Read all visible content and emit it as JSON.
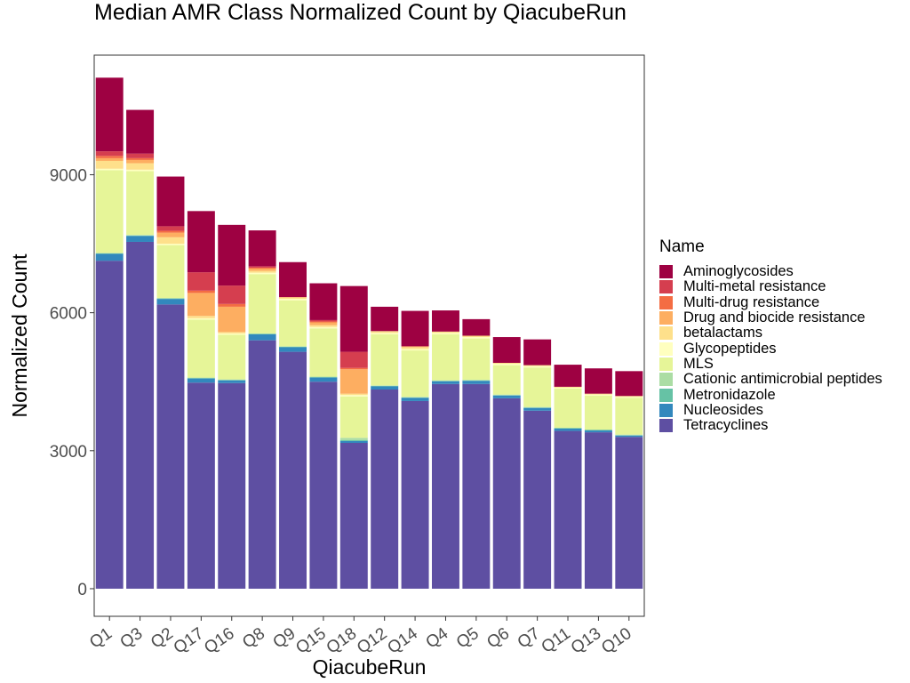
{
  "chart_data": {
    "type": "bar",
    "stacked": true,
    "title": "Median AMR Class Normalized Count by QiacubeRun",
    "xlabel": "QiacubeRun",
    "ylabel": "Normalized Count",
    "ylim": [
      -600,
      11600
    ],
    "yticks": [
      0,
      3000,
      6000,
      9000
    ],
    "ytick_labels": [
      "0",
      "3000",
      "6000",
      "9000"
    ],
    "grid": false,
    "legend_title": "Name",
    "legend_position": "right",
    "categories": [
      "Q1",
      "Q3",
      "Q2",
      "Q17",
      "Q16",
      "Q8",
      "Q9",
      "Q15",
      "Q18",
      "Q12",
      "Q14",
      "Q4",
      "Q5",
      "Q6",
      "Q7",
      "Q11",
      "Q13",
      "Q10"
    ],
    "series": [
      {
        "name": "Tetracyclines",
        "color": "#5E4FA2",
        "values": [
          7130,
          7540,
          6180,
          4480,
          4470,
          5400,
          5150,
          4500,
          3170,
          4330,
          4080,
          4450,
          4450,
          4140,
          3870,
          3430,
          3400,
          3300
        ]
      },
      {
        "name": "Nucleosides",
        "color": "#3288BD",
        "values": [
          150,
          130,
          120,
          90,
          60,
          130,
          100,
          90,
          40,
          70,
          70,
          60,
          70,
          60,
          60,
          50,
          40,
          30
        ]
      },
      {
        "name": "Metronidazole",
        "color": "#66C2A5",
        "values": [
          10,
          10,
          10,
          10,
          10,
          10,
          10,
          10,
          20,
          10,
          10,
          10,
          10,
          10,
          10,
          10,
          10,
          10
        ]
      },
      {
        "name": "Cationic antimicrobial peptides",
        "color": "#ABDDA4",
        "values": [
          10,
          10,
          10,
          10,
          10,
          10,
          10,
          10,
          50,
          10,
          10,
          10,
          10,
          10,
          10,
          10,
          10,
          10
        ]
      },
      {
        "name": "MLS",
        "color": "#E6F598",
        "values": [
          1800,
          1390,
          1150,
          1260,
          970,
          1290,
          1000,
          1050,
          900,
          1110,
          1010,
          1000,
          900,
          640,
          860,
          850,
          740,
          800
        ]
      },
      {
        "name": "Glycopeptides",
        "color": "#FFFFBF",
        "values": [
          30,
          30,
          30,
          30,
          30,
          30,
          30,
          30,
          30,
          30,
          30,
          30,
          30,
          30,
          30,
          20,
          20,
          20
        ]
      },
      {
        "name": "betalactams",
        "color": "#FEE08B",
        "values": [
          170,
          140,
          140,
          50,
          30,
          40,
          30,
          40,
          30,
          40,
          40,
          30,
          30,
          20,
          20,
          20,
          20,
          20
        ]
      },
      {
        "name": "Drug and biocide resistance",
        "color": "#FDAE61",
        "values": [
          60,
          70,
          100,
          500,
          550,
          50,
          10,
          60,
          530,
          0,
          20,
          0,
          0,
          0,
          0,
          0,
          0,
          0
        ]
      },
      {
        "name": "Multi-drug resistance",
        "color": "#F46D43",
        "values": [
          50,
          40,
          40,
          50,
          60,
          20,
          0,
          20,
          30,
          0,
          0,
          0,
          0,
          0,
          0,
          0,
          0,
          0
        ]
      },
      {
        "name": "Multi-metal resistance",
        "color": "#D53E4F",
        "values": [
          100,
          100,
          100,
          400,
          400,
          30,
          0,
          30,
          350,
          0,
          0,
          0,
          0,
          0,
          0,
          0,
          0,
          0
        ]
      },
      {
        "name": "Aminoglycosides",
        "color": "#9E0142",
        "values": [
          1600,
          950,
          1080,
          1330,
          1320,
          780,
          760,
          800,
          1430,
          530,
          770,
          460,
          360,
          560,
          560,
          480,
          550,
          540
        ]
      }
    ]
  }
}
